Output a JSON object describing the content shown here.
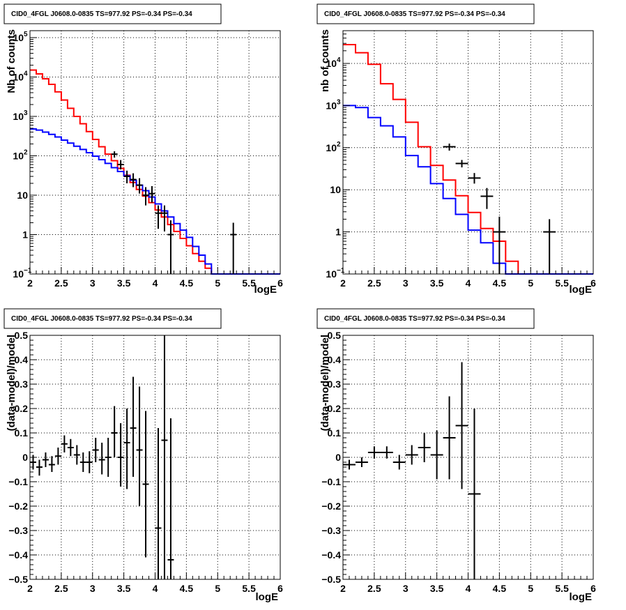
{
  "panels": [
    {
      "id": "tl",
      "title": "CID0_4FGL J0608.0-0835 TS=977.92 PS=-0.34 PS=-0.34",
      "xlabel": "logE",
      "ylabel": "Nb of counts",
      "xlim": [
        2,
        6
      ],
      "xticks": [
        "2",
        "2.5",
        "3",
        "3.5",
        "4",
        "4.5",
        "5",
        "5.5",
        "6"
      ],
      "ylog": true,
      "ylim": [
        0.1,
        150000
      ],
      "yticks": [
        {
          "v": 0.1,
          "t": "10",
          "e": "−1"
        },
        {
          "v": 1,
          "t": "1"
        },
        {
          "v": 10,
          "t": "10"
        },
        {
          "v": 100,
          "t": "10",
          "e": "2"
        },
        {
          "v": 1000,
          "t": "10",
          "e": "3"
        },
        {
          "v": 10000,
          "t": "10",
          "e": "4"
        },
        {
          "v": 100000,
          "t": "10",
          "e": "5"
        }
      ]
    },
    {
      "id": "tr",
      "title": "CID0_4FGL J0608.0-0835 TS=977.92 PS=-0.34 PS=-0.34",
      "xlabel": "logE",
      "ylabel": "nb of counts",
      "xlim": [
        2,
        6
      ],
      "xticks": [
        "2",
        "2.5",
        "3",
        "3.5",
        "4",
        "4.5",
        "5",
        "5.5",
        "6"
      ],
      "ylog": true,
      "ylim": [
        0.1,
        60000
      ],
      "yticks": [
        {
          "v": 0.1,
          "t": "10",
          "e": "−1"
        },
        {
          "v": 1,
          "t": "1"
        },
        {
          "v": 10,
          "t": "10"
        },
        {
          "v": 100,
          "t": "10",
          "e": "2"
        },
        {
          "v": 1000,
          "t": "10",
          "e": "3"
        },
        {
          "v": 10000,
          "t": "10",
          "e": "4"
        }
      ]
    },
    {
      "id": "bl",
      "title": "CID0_4FGL J0608.0-0835 TS=977.92 PS=-0.34 PS=-0.34",
      "xlabel": "logE",
      "ylabel": "(data-model)/model",
      "xlim": [
        2,
        6
      ],
      "xticks": [
        "2",
        "2.5",
        "3",
        "3.5",
        "4",
        "4.5",
        "5",
        "5.5",
        "6"
      ],
      "ylog": false,
      "ylim": [
        -0.5,
        0.5
      ],
      "yticks": [
        {
          "v": -0.5,
          "t": "−0.5"
        },
        {
          "v": -0.4,
          "t": "−0.4"
        },
        {
          "v": -0.3,
          "t": "−0.3"
        },
        {
          "v": -0.2,
          "t": "−0.2"
        },
        {
          "v": -0.1,
          "t": "−0.1"
        },
        {
          "v": 0,
          "t": "0"
        },
        {
          "v": 0.1,
          "t": "0.1"
        },
        {
          "v": 0.2,
          "t": "0.2"
        },
        {
          "v": 0.3,
          "t": "0.3"
        },
        {
          "v": 0.4,
          "t": "0.4"
        },
        {
          "v": 0.5,
          "t": "0.5"
        }
      ]
    },
    {
      "id": "br",
      "title": "CID0_4FGL J0608.0-0835 TS=977.92 PS=-0.34 PS=-0.34",
      "xlabel": "logE",
      "ylabel": "(data-model)/model",
      "xlim": [
        2,
        6
      ],
      "xticks": [
        "2",
        "2.5",
        "3",
        "3.5",
        "4",
        "4.5",
        "5",
        "5.5",
        "6"
      ],
      "ylog": false,
      "ylim": [
        -0.5,
        0.5
      ],
      "yticks": [
        {
          "v": -0.5,
          "t": "−0.5"
        },
        {
          "v": -0.4,
          "t": "−0.4"
        },
        {
          "v": -0.3,
          "t": "−0.3"
        },
        {
          "v": -0.2,
          "t": "−0.2"
        },
        {
          "v": -0.1,
          "t": "−0.1"
        },
        {
          "v": 0,
          "t": "0"
        },
        {
          "v": 0.1,
          "t": "0.1"
        },
        {
          "v": 0.2,
          "t": "0.2"
        },
        {
          "v": 0.3,
          "t": "0.3"
        },
        {
          "v": 0.4,
          "t": "0.4"
        },
        {
          "v": 0.5,
          "t": "0.5"
        }
      ]
    }
  ],
  "colors": {
    "model_total": "#ff0000",
    "model_component": "#0000ff",
    "data": "#000000",
    "grid": "#000000"
  },
  "chart_data": [
    {
      "type": "line",
      "panel": "tl",
      "grid": true,
      "x_bin_edges": [
        2.0,
        2.1,
        2.2,
        2.3,
        2.4,
        2.5,
        2.6,
        2.7,
        2.8,
        2.9,
        3.0,
        3.1,
        3.2,
        3.3,
        3.4,
        3.5,
        3.6,
        3.7,
        3.8,
        3.9,
        4.0,
        4.1,
        4.2,
        4.3,
        4.4,
        4.5,
        4.6,
        4.7,
        4.8,
        4.9,
        5.0,
        5.1,
        5.2,
        5.3,
        5.4,
        5.5,
        5.6,
        5.7,
        5.8,
        5.9,
        6.0
      ],
      "series": [
        {
          "color": "#ff0000",
          "style": "step",
          "values": [
            15000,
            12000,
            9000,
            6500,
            4200,
            2600,
            1600,
            1000,
            650,
            410,
            260,
            170,
            110,
            75,
            48,
            32,
            21,
            14,
            9.5,
            6.5,
            4.2,
            2.8,
            1.8,
            1.2,
            0.8,
            0.52,
            0.33,
            0.21,
            0.14,
            0.1,
            0.1,
            0.1,
            0.1,
            0.1,
            0.1,
            0.1,
            0.1,
            0.1,
            0.1,
            0.1
          ]
        },
        {
          "color": "#0000ff",
          "style": "step",
          "values": [
            480,
            450,
            400,
            350,
            300,
            250,
            210,
            175,
            145,
            120,
            98,
            80,
            64,
            50,
            40,
            31,
            24,
            18,
            13,
            9,
            6,
            4,
            2.8,
            1.9,
            1.3,
            0.85,
            0.5,
            0.3,
            0.18,
            0.1,
            0.1,
            0.1,
            0.1,
            0.1,
            0.1,
            0.1,
            0.1,
            0.1,
            0.1,
            0.1
          ]
        }
      ],
      "points": [
        {
          "x": 3.35,
          "y": 110,
          "lo": 90,
          "hi": 130
        },
        {
          "x": 3.45,
          "y": 60,
          "lo": 45,
          "hi": 78
        },
        {
          "x": 3.55,
          "y": 30,
          "lo": 20,
          "hi": 42
        },
        {
          "x": 3.65,
          "y": 25,
          "lo": 16,
          "hi": 36
        },
        {
          "x": 3.75,
          "y": 18,
          "lo": 11,
          "hi": 27
        },
        {
          "x": 3.85,
          "y": 10,
          "lo": 5.5,
          "hi": 16
        },
        {
          "x": 3.95,
          "y": 11,
          "lo": 6.5,
          "hi": 17
        },
        {
          "x": 4.05,
          "y": 3.5,
          "lo": 1.4,
          "hi": 5.5
        },
        {
          "x": 4.15,
          "y": 3.5,
          "lo": 1.2,
          "hi": 5.5
        },
        {
          "x": 4.25,
          "y": 1,
          "lo": 0.1,
          "hi": 2.3
        },
        {
          "x": 5.25,
          "y": 1,
          "lo": 0.1,
          "hi": 2.0
        }
      ]
    },
    {
      "type": "line",
      "panel": "tr",
      "grid": true,
      "x_bin_edges": [
        2.0,
        2.2,
        2.4,
        2.6,
        2.8,
        3.0,
        3.2,
        3.4,
        3.6,
        3.8,
        4.0,
        4.2,
        4.4,
        4.6,
        4.8,
        5.0,
        5.2,
        5.4,
        5.6,
        5.8,
        6.0
      ],
      "series": [
        {
          "color": "#ff0000",
          "style": "step",
          "values": [
            28000,
            18000,
            9500,
            3300,
            1400,
            400,
            105,
            38,
            17,
            7.2,
            2.9,
            1.2,
            0.6,
            0.2,
            0.1,
            0.1,
            0.1,
            0.1,
            0.1,
            0.1
          ]
        },
        {
          "color": "#0000ff",
          "style": "step",
          "values": [
            1000,
            900,
            520,
            330,
            180,
            65,
            35,
            14,
            6.2,
            2.6,
            1.1,
            0.55,
            0.18,
            0.1,
            0.1,
            0.1,
            0.1,
            0.1,
            0.1,
            0.1
          ]
        }
      ],
      "points": [
        {
          "x": 3.7,
          "y": 105,
          "lo": 85,
          "hi": 125
        },
        {
          "x": 3.9,
          "y": 42,
          "lo": 34,
          "hi": 51
        },
        {
          "x": 4.1,
          "y": 19,
          "lo": 14,
          "hi": 25
        },
        {
          "x": 4.3,
          "y": 7,
          "lo": 3.5,
          "hi": 11
        },
        {
          "x": 4.5,
          "y": 1,
          "lo": 0.1,
          "hi": 2.3
        },
        {
          "x": 5.3,
          "y": 1,
          "lo": 0.1,
          "hi": 2.0
        }
      ]
    },
    {
      "type": "scatter",
      "panel": "bl",
      "grid": true,
      "points": [
        {
          "x": 2.05,
          "y": -0.02,
          "lo": -0.05,
          "hi": 0.01
        },
        {
          "x": 2.15,
          "y": -0.04,
          "lo": -0.075,
          "hi": -0.01
        },
        {
          "x": 2.25,
          "y": -0.01,
          "lo": -0.04,
          "hi": 0.02
        },
        {
          "x": 2.35,
          "y": -0.03,
          "lo": -0.06,
          "hi": 0.005
        },
        {
          "x": 2.45,
          "y": 0.005,
          "lo": -0.03,
          "hi": 0.04
        },
        {
          "x": 2.55,
          "y": 0.055,
          "lo": 0.02,
          "hi": 0.09
        },
        {
          "x": 2.65,
          "y": 0.04,
          "lo": 0.005,
          "hi": 0.075
        },
        {
          "x": 2.75,
          "y": 0.01,
          "lo": -0.03,
          "hi": 0.05
        },
        {
          "x": 2.85,
          "y": -0.02,
          "lo": -0.06,
          "hi": 0.02
        },
        {
          "x": 2.95,
          "y": -0.02,
          "lo": -0.065,
          "hi": 0.025
        },
        {
          "x": 3.05,
          "y": 0.03,
          "lo": -0.02,
          "hi": 0.08
        },
        {
          "x": 3.15,
          "y": -0.01,
          "lo": -0.07,
          "hi": 0.06
        },
        {
          "x": 3.25,
          "y": 0.0,
          "lo": -0.08,
          "hi": 0.08
        },
        {
          "x": 3.35,
          "y": 0.1,
          "lo": 0.0,
          "hi": 0.21
        },
        {
          "x": 3.45,
          "y": 0.0,
          "lo": -0.12,
          "hi": 0.14
        },
        {
          "x": 3.55,
          "y": 0.06,
          "lo": -0.13,
          "hi": 0.2
        },
        {
          "x": 3.65,
          "y": 0.12,
          "lo": -0.08,
          "hi": 0.33
        },
        {
          "x": 3.75,
          "y": 0.03,
          "lo": -0.2,
          "hi": 0.29
        },
        {
          "x": 3.85,
          "y": -0.11,
          "lo": -0.41,
          "hi": 0.19
        },
        {
          "x": 4.05,
          "y": -0.29,
          "lo": -0.5,
          "hi": 0.12
        },
        {
          "x": 4.15,
          "y": 0.07,
          "lo": -0.5,
          "hi": 0.5
        },
        {
          "x": 4.25,
          "y": -0.42,
          "lo": -0.5,
          "hi": 0.16
        }
      ]
    },
    {
      "type": "scatter",
      "panel": "br",
      "grid": true,
      "points": [
        {
          "x": 2.1,
          "y": -0.03,
          "lo": -0.05,
          "hi": -0.01
        },
        {
          "x": 2.3,
          "y": -0.02,
          "lo": -0.04,
          "hi": 0.0
        },
        {
          "x": 2.5,
          "y": 0.02,
          "lo": -0.005,
          "hi": 0.045
        },
        {
          "x": 2.7,
          "y": 0.02,
          "lo": -0.005,
          "hi": 0.045
        },
        {
          "x": 2.9,
          "y": -0.02,
          "lo": -0.05,
          "hi": 0.01
        },
        {
          "x": 3.1,
          "y": 0.01,
          "lo": -0.03,
          "hi": 0.05
        },
        {
          "x": 3.3,
          "y": 0.04,
          "lo": -0.02,
          "hi": 0.1
        },
        {
          "x": 3.5,
          "y": 0.01,
          "lo": -0.09,
          "hi": 0.11
        },
        {
          "x": 3.7,
          "y": 0.08,
          "lo": -0.09,
          "hi": 0.25
        },
        {
          "x": 3.9,
          "y": 0.13,
          "lo": -0.13,
          "hi": 0.39
        },
        {
          "x": 4.1,
          "y": -0.15,
          "lo": -0.5,
          "hi": 0.2
        }
      ]
    }
  ]
}
